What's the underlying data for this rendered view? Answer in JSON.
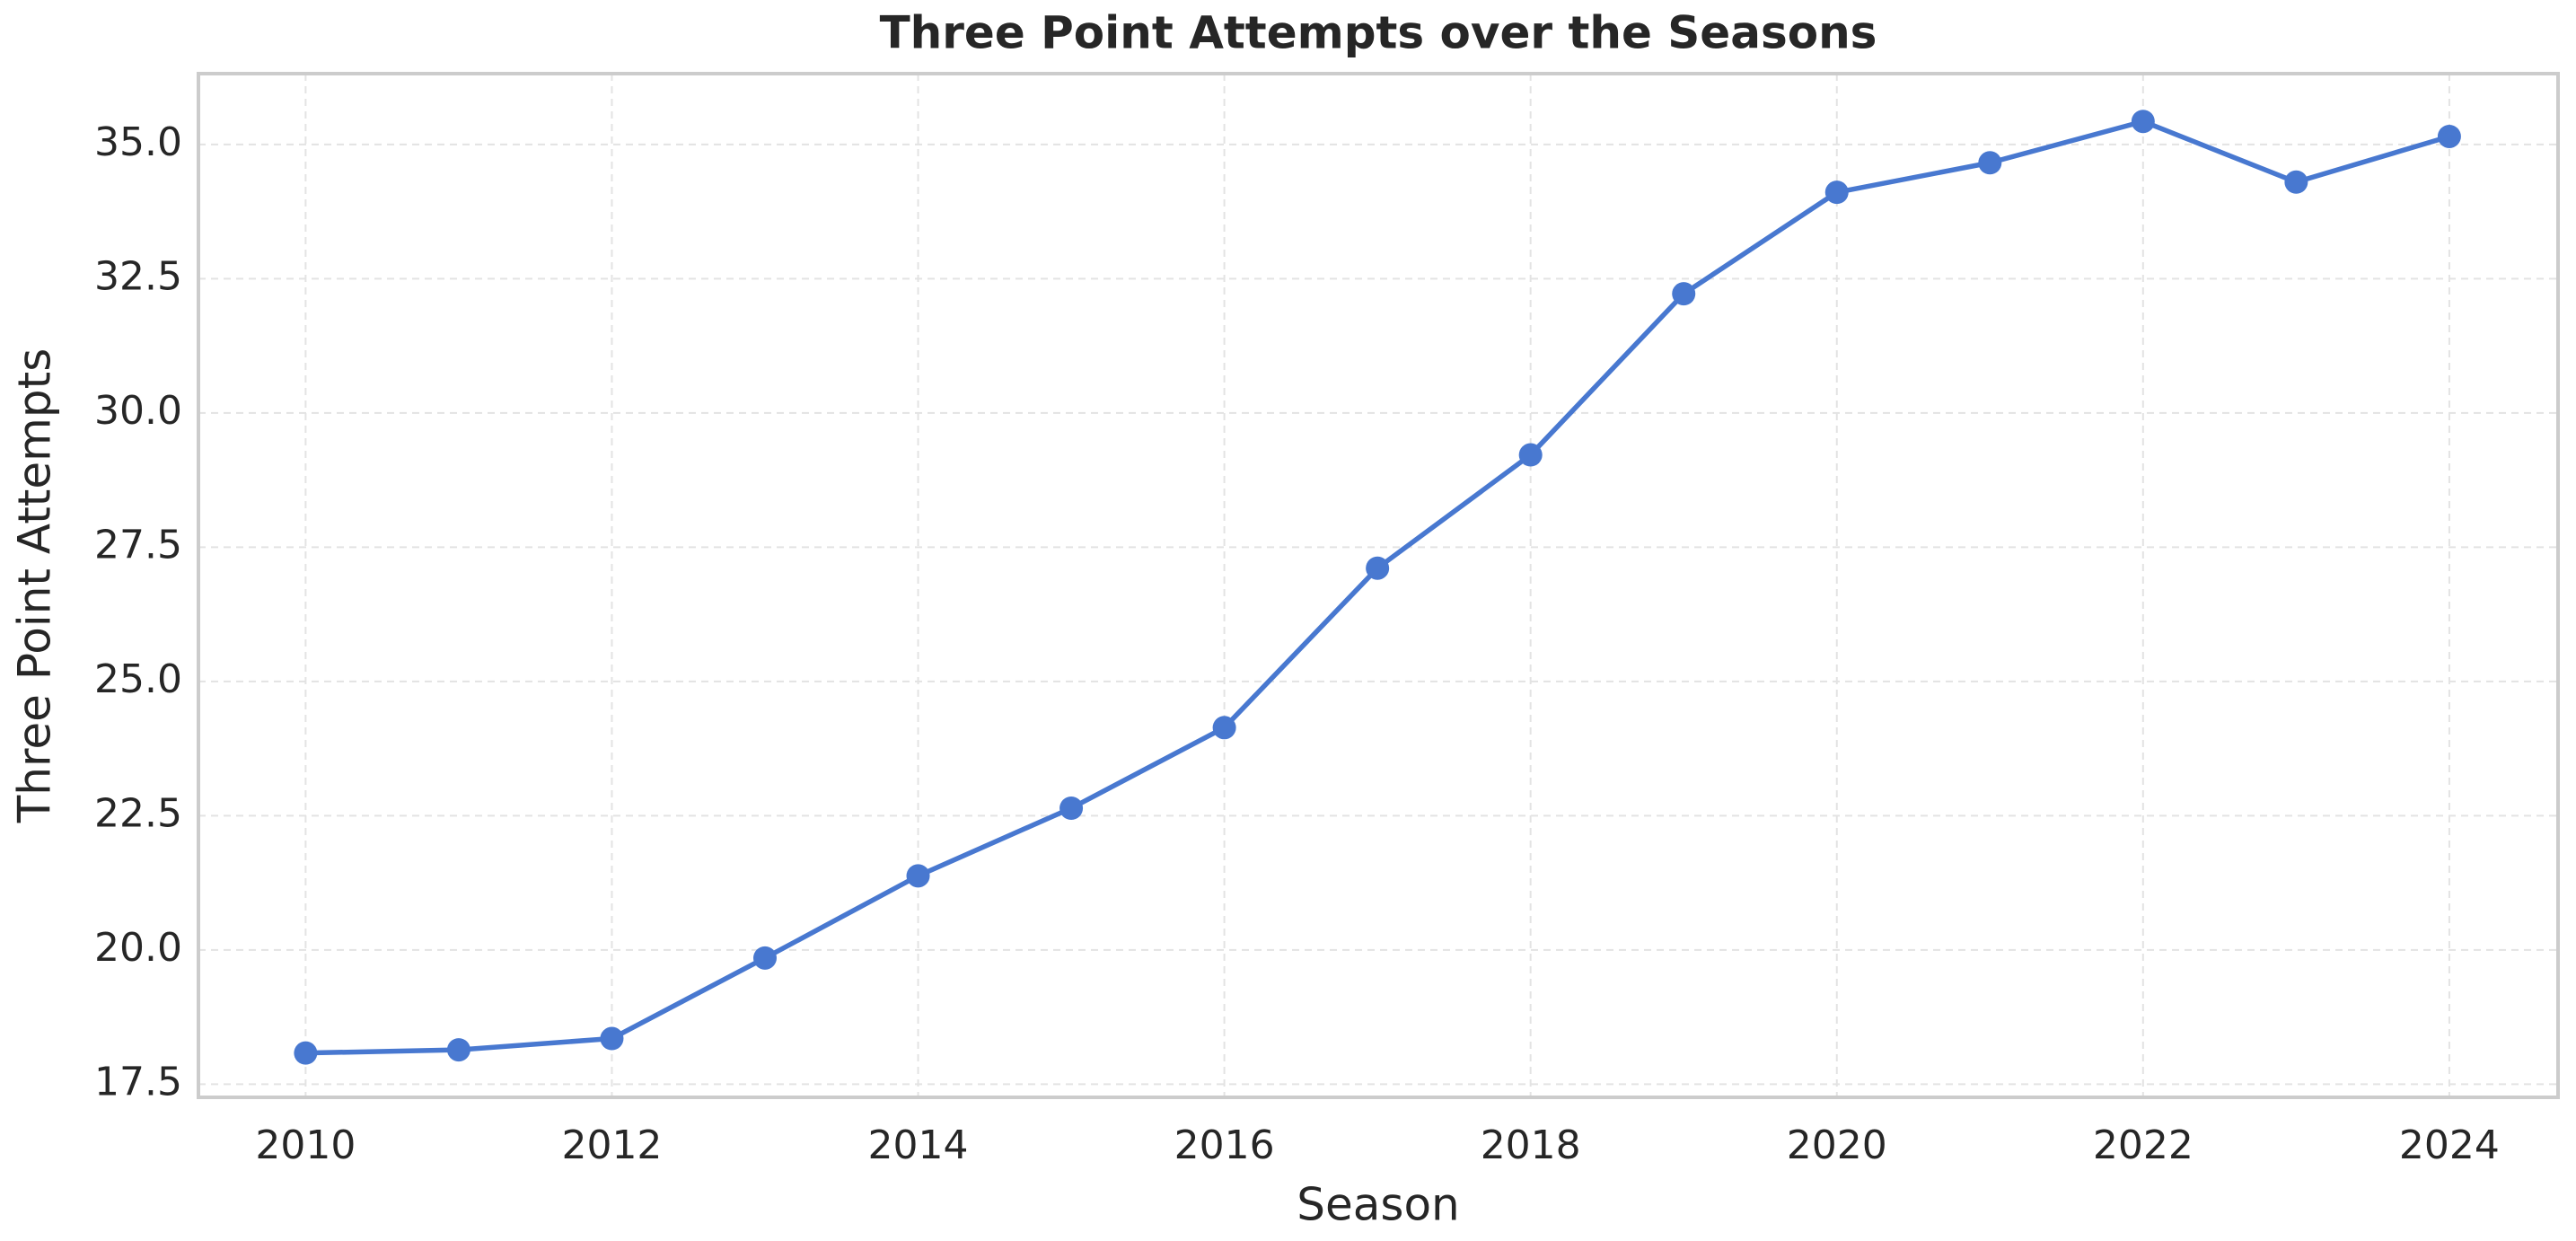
{
  "chart_data": {
    "type": "line",
    "title": "Three Point Attempts over the Seasons",
    "x_label": "Season",
    "y_label": "Three Point Attempts",
    "x": [
      2010,
      2011,
      2012,
      2013,
      2014,
      2015,
      2016,
      2017,
      2018,
      2019,
      2020,
      2021,
      2022,
      2023,
      2024
    ],
    "values": [
      18.08,
      18.14,
      18.35,
      19.85,
      21.38,
      22.64,
      24.14,
      27.11,
      29.22,
      32.22,
      34.11,
      34.66,
      35.43,
      34.3,
      35.15
    ],
    "color": "#4878d0",
    "xlim": [
      2009.3,
      2024.71
    ],
    "xticks": [
      2010,
      2012,
      2014,
      2016,
      2018,
      2020,
      2022,
      2024
    ],
    "ylim": [
      17.255,
      36.32
    ],
    "yticks": [
      17.5,
      {
        "value": 20,
        "label": "20.0"
      },
      22.5,
      {
        "value": 25,
        "label": "25.0"
      },
      27.5,
      {
        "value": 30,
        "label": "30.0"
      },
      32.5,
      {
        "value": 35,
        "label": "35.0"
      }
    ],
    "grid": true
  }
}
